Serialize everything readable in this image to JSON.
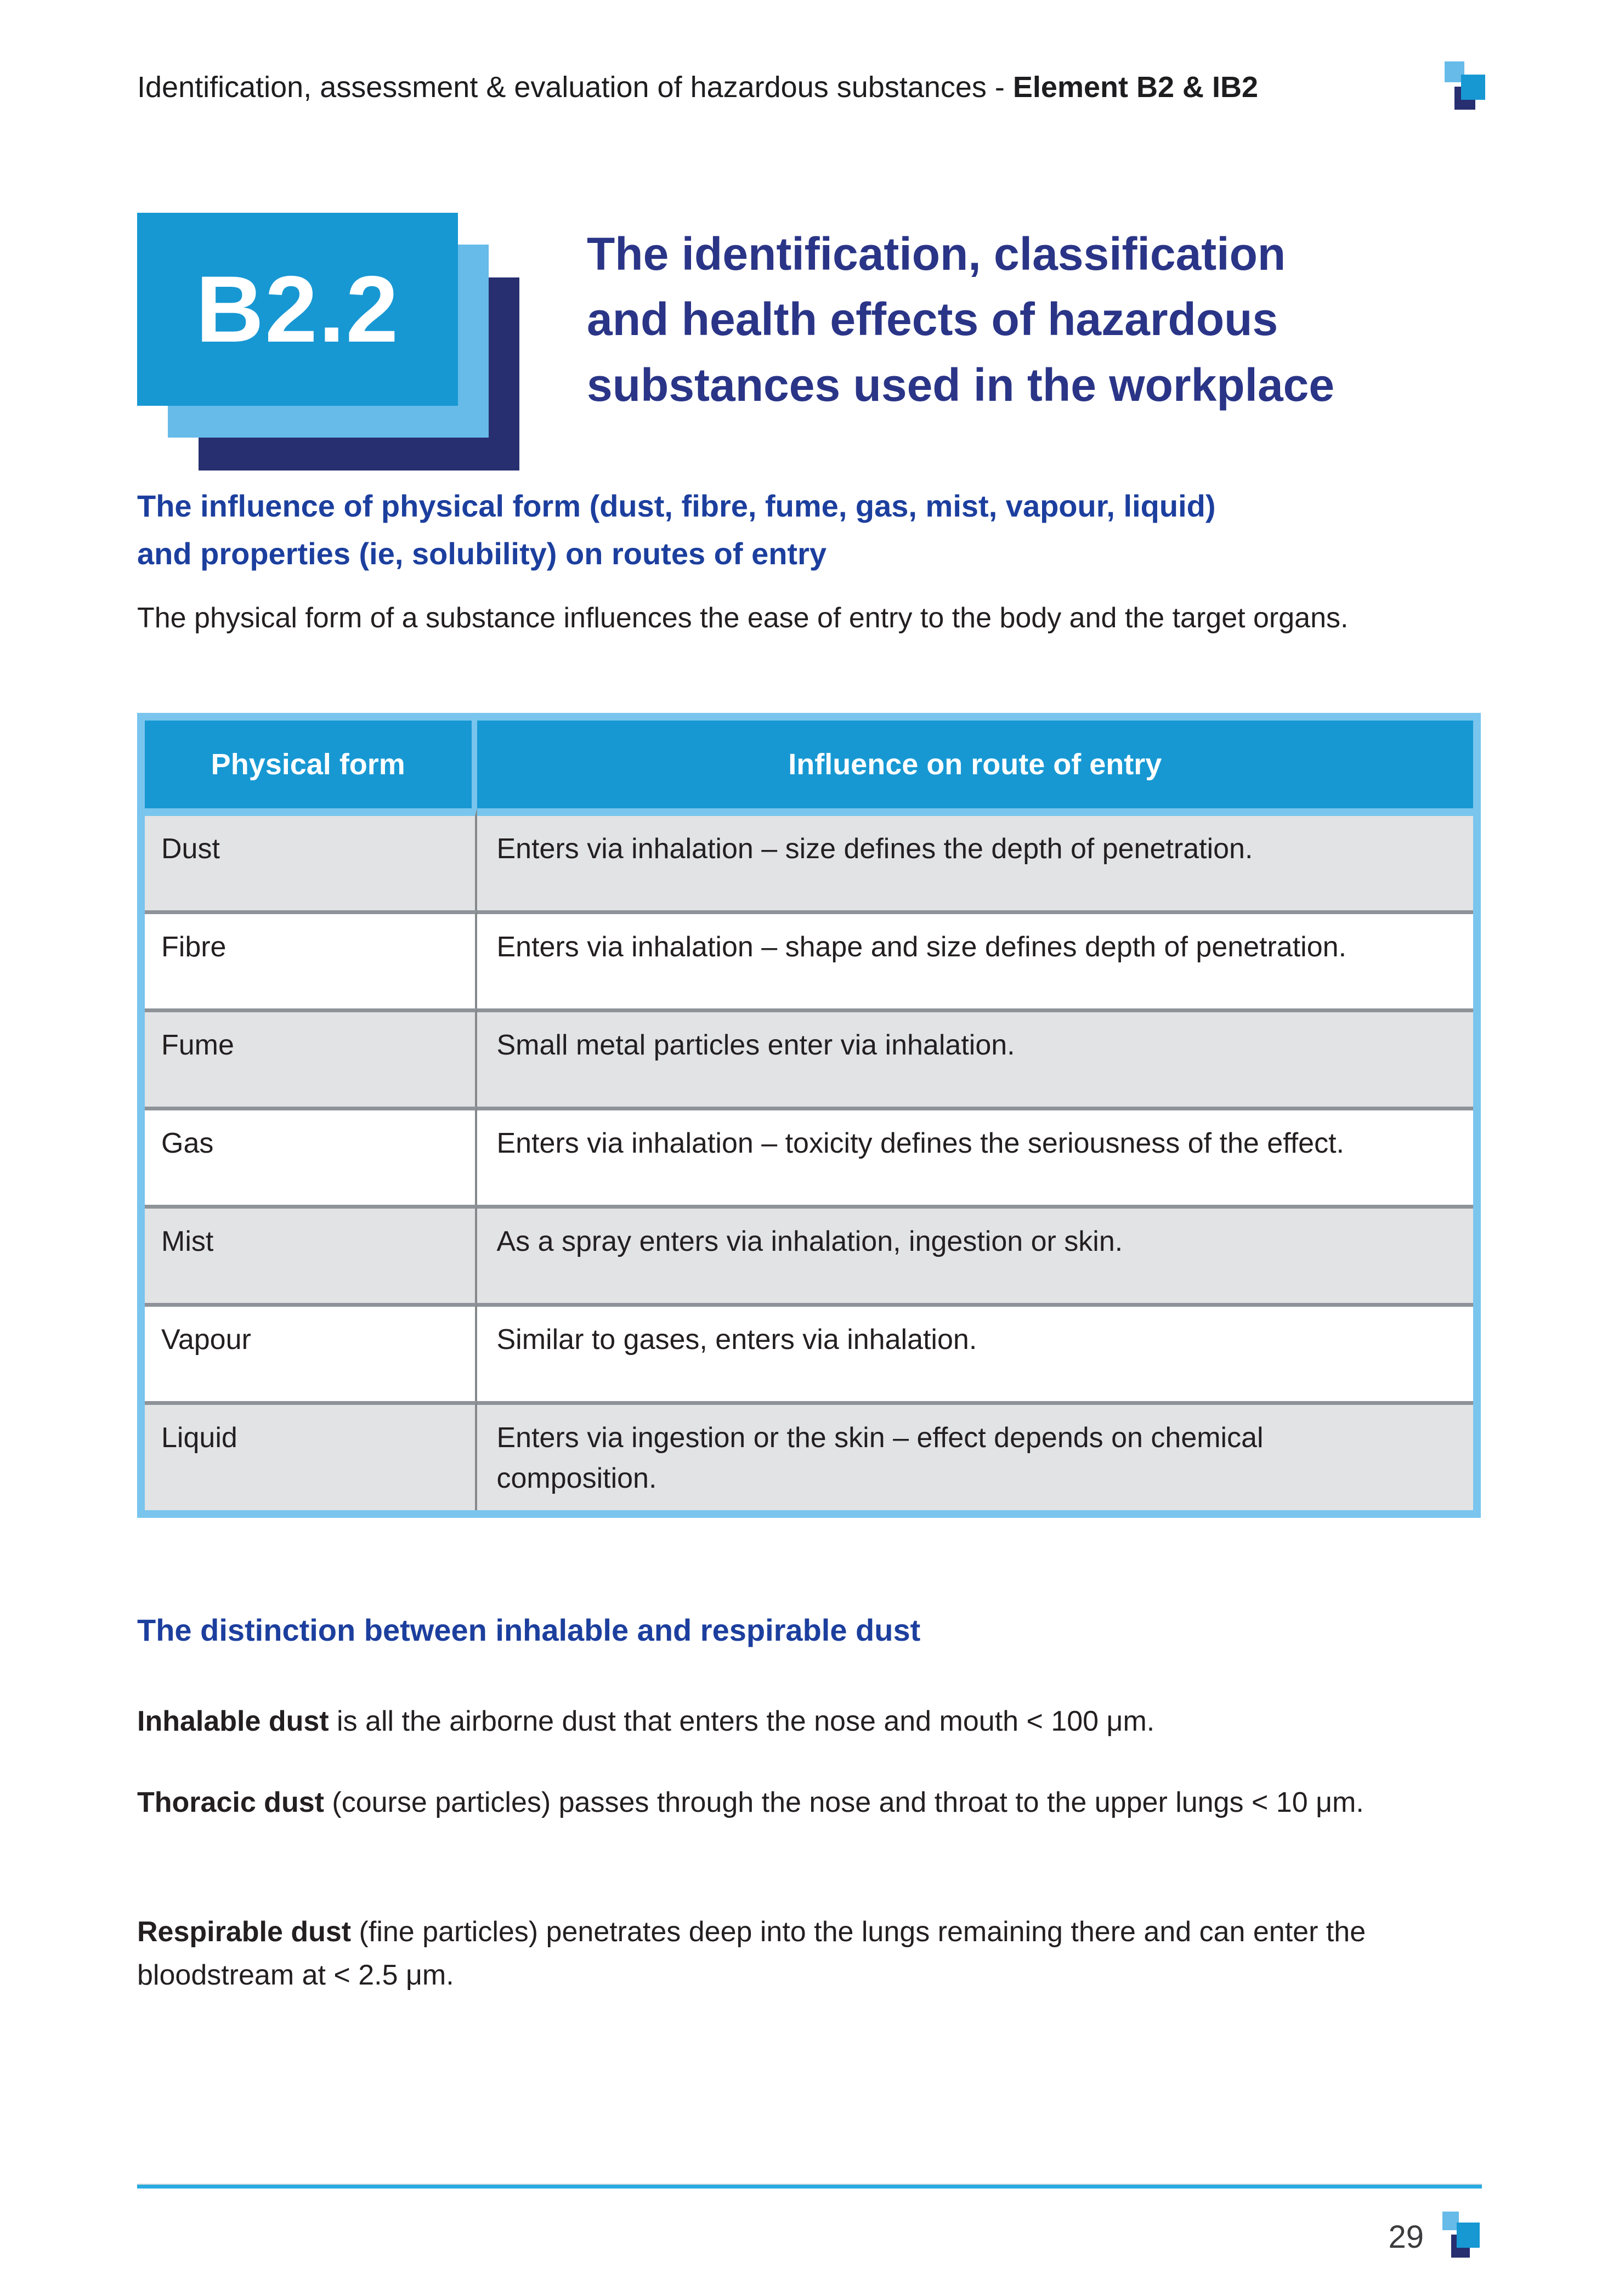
{
  "header": {
    "title_prefix": "Identification, assessment & evaluation of hazardous substances - ",
    "title_bold": "Element B2 & IB2",
    "logo_icon": "three-squares-logo"
  },
  "hero": {
    "badge_label": "B2.2",
    "title_lines": [
      "The identification, classification",
      "and health effects of hazardous",
      "substances used in the workplace"
    ]
  },
  "section_influence": {
    "heading_lines": [
      "The influence of physical form (dust, fibre, fume, gas, mist, vapour, liquid)",
      "and properties (ie, solubility) on routes of entry"
    ],
    "intro": "The physical form of a substance influences the ease of entry to the body and the target organs."
  },
  "table": {
    "col_headers": [
      "Physical form",
      "Influence on route of entry"
    ],
    "rows": [
      {
        "form": "Dust",
        "influence": "Enters via inhalation – size defines the depth of penetration."
      },
      {
        "form": "Fibre",
        "influence": "Enters via inhalation – shape and size defines depth of penetration."
      },
      {
        "form": "Fume",
        "influence": "Small metal particles enter via inhalation."
      },
      {
        "form": "Gas",
        "influence": "Enters via inhalation – toxicity defines the seriousness of the effect."
      },
      {
        "form": "Mist",
        "influence": "As a spray enters via inhalation, ingestion or skin."
      },
      {
        "form": "Vapour",
        "influence": "Similar to gases, enters via inhalation."
      },
      {
        "form": "Liquid",
        "influence": "Enters via ingestion or the skin – effect depends on chemical composition."
      }
    ]
  },
  "section_distinction": {
    "heading": "The distinction between inhalable and respirable dust",
    "paragraphs": [
      {
        "lead": "Inhalable dust",
        "rest": " is all the airborne dust that enters the nose and mouth < 100 μm."
      },
      {
        "lead": "Thoracic dust",
        "rest": " (course particles) passes through the nose and throat to the upper lungs < 10 μm."
      },
      {
        "lead": "Respirable dust",
        "rest": " (fine particles) penetrates deep into the lungs remaining there and can enter the bloodstream at < 2.5 μm."
      }
    ]
  },
  "footer": {
    "page_number": "29",
    "logo_icon": "three-squares-logo"
  },
  "colors": {
    "accent_blue": "#1798d3",
    "light_blue": "#66bbe9",
    "navy_square": "#272f70",
    "title_navy": "#2a3587",
    "subheading_blue": "#1c3f9e",
    "table_border_blue": "#79c5ee",
    "footer_rule_blue": "#29abe2",
    "row_shade_gray": "#e2e3e5",
    "row_separator_gray": "#8d9398",
    "body_text": "#231f20"
  }
}
